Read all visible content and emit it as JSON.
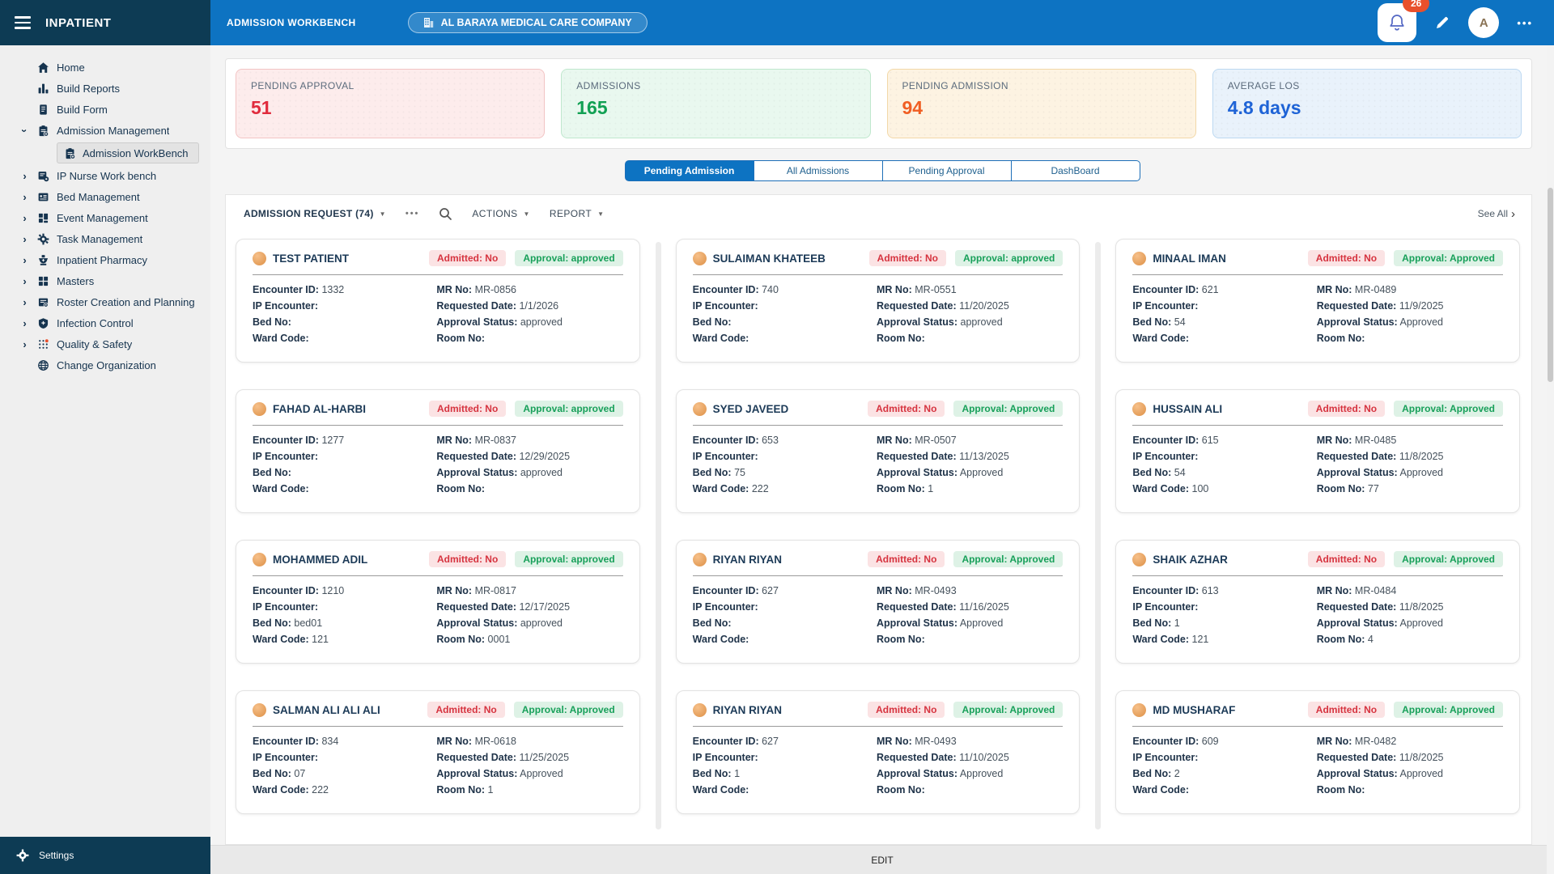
{
  "colors": {
    "accent": "#0d73c2",
    "sidebar_dark": "#0d3b54",
    "notification_badge": "#e8502c"
  },
  "sidebar": {
    "title": "INPATIENT",
    "settings_label": "Settings",
    "items": [
      {
        "label": "Home",
        "icon": "home-icon",
        "chevron": "none"
      },
      {
        "label": "Build Reports",
        "icon": "build-reports-icon",
        "chevron": "none"
      },
      {
        "label": "Build Form",
        "icon": "build-form-icon",
        "chevron": "none"
      },
      {
        "label": "Admission Management",
        "icon": "admission-management-icon",
        "chevron": "down",
        "sub": [
          {
            "label": "Admission WorkBench",
            "icon": "admission-workbench-icon",
            "active": true
          }
        ]
      },
      {
        "label": "IP Nurse Work bench",
        "icon": "nurse-workbench-icon",
        "chevron": "right"
      },
      {
        "label": "Bed Management",
        "icon": "bed-management-icon",
        "chevron": "right"
      },
      {
        "label": "Event Management",
        "icon": "event-management-icon",
        "chevron": "right"
      },
      {
        "label": "Task Management",
        "icon": "task-management-icon",
        "chevron": "right"
      },
      {
        "label": "Inpatient Pharmacy",
        "icon": "inpatient-pharmacy-icon",
        "chevron": "right"
      },
      {
        "label": "Masters",
        "icon": "masters-icon",
        "chevron": "right"
      },
      {
        "label": "Roster Creation and Planning",
        "icon": "roster-icon",
        "chevron": "right"
      },
      {
        "label": "Infection Control",
        "icon": "infection-control-icon",
        "chevron": "right"
      },
      {
        "label": "Quality & Safety",
        "icon": "quality-safety-icon",
        "chevron": "right"
      },
      {
        "label": "Change Organization",
        "icon": "change-organization-icon",
        "chevron": "none"
      }
    ]
  },
  "header": {
    "workbench_label": "ADMISSION WORKBENCH",
    "company_name": "AL BARAYA MEDICAL CARE COMPANY",
    "notification_count": "26",
    "avatar_initial": "A",
    "more_label": "•••"
  },
  "stats": [
    {
      "label": "PENDING APPROVAL",
      "value": "51",
      "bg": "#fdecec",
      "border": "#f2c4c4",
      "color": "#e02b3d"
    },
    {
      "label": "ADMISSIONS",
      "value": "165",
      "bg": "#e9f8ef",
      "border": "#bfe7cd",
      "color": "#11a053"
    },
    {
      "label": "PENDING ADMISSION",
      "value": "94",
      "bg": "#fdf3e2",
      "border": "#f2d8a8",
      "color": "#f05e23"
    },
    {
      "label": "AVERAGE LOS",
      "value": "4.8 days",
      "bg": "#e9f2fb",
      "border": "#bcd8f1",
      "color": "#1e63d6"
    }
  ],
  "tabs": [
    {
      "label": "Pending Admission",
      "active": true
    },
    {
      "label": "All Admissions",
      "active": false
    },
    {
      "label": "Pending Approval",
      "active": false
    },
    {
      "label": "DashBoard",
      "active": false
    }
  ],
  "toolbar": {
    "filter_label": "ADMISSION REQUEST (74)",
    "more_label": "•••",
    "actions_label": "ACTIONS",
    "report_label": "REPORT",
    "see_all_label": "See All"
  },
  "field_labels": {
    "encounter_id": "Encounter ID:",
    "ip_encounter": "IP Encounter:",
    "bed_no": "Bed No:",
    "ward_code": "Ward Code:",
    "mr_no": "MR No:",
    "requested_date": "Requested Date:",
    "approval_status": "Approval Status:",
    "room_no": "Room No:"
  },
  "patients": [
    {
      "name": "TEST PATIENT",
      "admitted_badge": "Admitted: No",
      "approval_badge": "Approval: approved",
      "encounter_id": "1332",
      "ip_encounter": "",
      "bed_no": "",
      "ward_code": "",
      "mr_no": "MR-0856",
      "requested_date": "1/1/2026",
      "approval_status": "approved",
      "room_no": ""
    },
    {
      "name": "SULAIMAN KHATEEB",
      "admitted_badge": "Admitted: No",
      "approval_badge": "Approval: approved",
      "encounter_id": "740",
      "ip_encounter": "",
      "bed_no": "",
      "ward_code": "",
      "mr_no": "MR-0551",
      "requested_date": "11/20/2025",
      "approval_status": "approved",
      "room_no": ""
    },
    {
      "name": "MINAAL IMAN",
      "admitted_badge": "Admitted: No",
      "approval_badge": "Approval: Approved",
      "encounter_id": "621",
      "ip_encounter": "",
      "bed_no": "54",
      "ward_code": "",
      "mr_no": "MR-0489",
      "requested_date": "11/9/2025",
      "approval_status": "Approved",
      "room_no": ""
    },
    {
      "name": "FAHAD AL-HARBI",
      "admitted_badge": "Admitted: No",
      "approval_badge": "Approval: approved",
      "encounter_id": "1277",
      "ip_encounter": "",
      "bed_no": "",
      "ward_code": "",
      "mr_no": "MR-0837",
      "requested_date": "12/29/2025",
      "approval_status": "approved",
      "room_no": ""
    },
    {
      "name": "SYED JAVEED",
      "admitted_badge": "Admitted: No",
      "approval_badge": "Approval: Approved",
      "encounter_id": "653",
      "ip_encounter": "",
      "bed_no": "75",
      "ward_code": "222",
      "mr_no": "MR-0507",
      "requested_date": "11/13/2025",
      "approval_status": "Approved",
      "room_no": "1"
    },
    {
      "name": "HUSSAIN ALI",
      "admitted_badge": "Admitted: No",
      "approval_badge": "Approval: Approved",
      "encounter_id": "615",
      "ip_encounter": "",
      "bed_no": "54",
      "ward_code": "100",
      "mr_no": "MR-0485",
      "requested_date": "11/8/2025",
      "approval_status": "Approved",
      "room_no": "77"
    },
    {
      "name": "MOHAMMED ADIL",
      "admitted_badge": "Admitted: No",
      "approval_badge": "Approval: approved",
      "encounter_id": "1210",
      "ip_encounter": "",
      "bed_no": "bed01",
      "ward_code": "121",
      "mr_no": "MR-0817",
      "requested_date": "12/17/2025",
      "approval_status": "approved",
      "room_no": "0001"
    },
    {
      "name": "RIYAN RIYAN",
      "admitted_badge": "Admitted: No",
      "approval_badge": "Approval: Approved",
      "encounter_id": "627",
      "ip_encounter": "",
      "bed_no": "",
      "ward_code": "",
      "mr_no": "MR-0493",
      "requested_date": "11/16/2025",
      "approval_status": "Approved",
      "room_no": ""
    },
    {
      "name": "SHAIK AZHAR",
      "admitted_badge": "Admitted: No",
      "approval_badge": "Approval: Approved",
      "encounter_id": "613",
      "ip_encounter": "",
      "bed_no": "1",
      "ward_code": "121",
      "mr_no": "MR-0484",
      "requested_date": "11/8/2025",
      "approval_status": "Approved",
      "room_no": "4"
    },
    {
      "name": "SALMAN ALI ALI ALI",
      "admitted_badge": "Admitted: No",
      "approval_badge": "Approval: Approved",
      "encounter_id": "834",
      "ip_encounter": "",
      "bed_no": "07",
      "ward_code": "222",
      "mr_no": "MR-0618",
      "requested_date": "11/25/2025",
      "approval_status": "Approved",
      "room_no": "1"
    },
    {
      "name": "RIYAN RIYAN",
      "admitted_badge": "Admitted: No",
      "approval_badge": "Approval: Approved",
      "encounter_id": "627",
      "ip_encounter": "",
      "bed_no": "1",
      "ward_code": "",
      "mr_no": "MR-0493",
      "requested_date": "11/10/2025",
      "approval_status": "Approved",
      "room_no": ""
    },
    {
      "name": "MD MUSHARAF",
      "admitted_badge": "Admitted: No",
      "approval_badge": "Approval: Approved",
      "encounter_id": "609",
      "ip_encounter": "",
      "bed_no": "2",
      "ward_code": "",
      "mr_no": "MR-0482",
      "requested_date": "11/8/2025",
      "approval_status": "Approved",
      "room_no": ""
    }
  ],
  "footer": {
    "edit_label": "EDIT"
  }
}
